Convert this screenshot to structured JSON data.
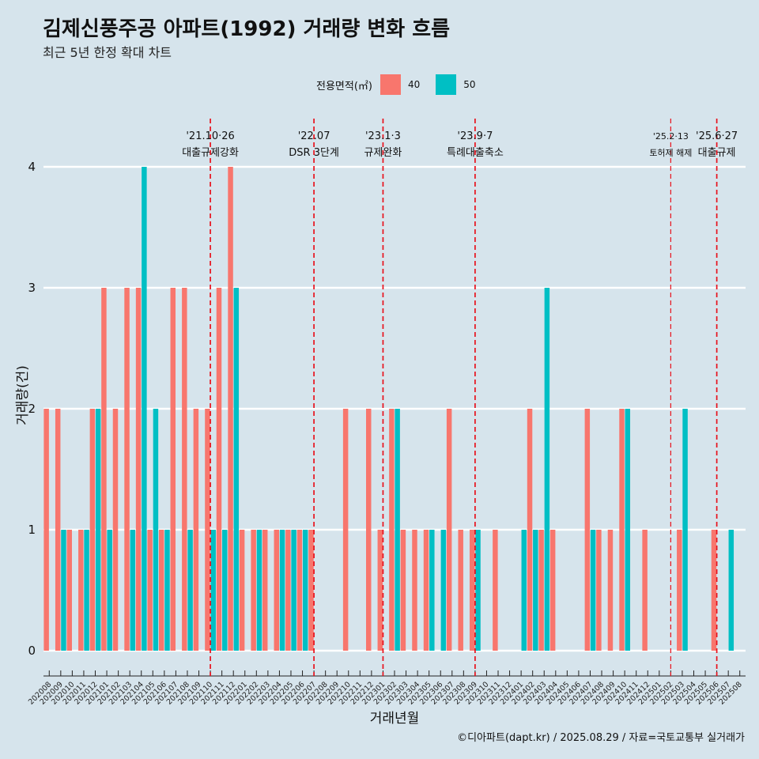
{
  "title": "김제신풍주공 아파트(1992) 거래량 변화 흐름",
  "subtitle": "최근 5년 한정 확대 차트",
  "legend": {
    "title": "전용면적(㎡)",
    "items": [
      {
        "label": "40",
        "color": "#F8766D"
      },
      {
        "label": "50",
        "color": "#00BFC4"
      }
    ]
  },
  "caption": "©디아파트(dapt.kr) / 2025.08.29 / 자료=국토교통부 실거래가",
  "colors": {
    "background": "#d6e4ec",
    "grid": "#ffffff",
    "event_line": "#e8111c"
  },
  "chart_data": {
    "type": "bar",
    "position": "dodge",
    "xlabel": "거래년월",
    "ylabel": "거래량(건)",
    "ylim": [
      0,
      4
    ],
    "yticks": [
      0,
      1,
      2,
      3,
      4
    ],
    "grid": "horizontal",
    "legend_position": "top",
    "categories": [
      "202008",
      "202009",
      "202010",
      "202011",
      "202012",
      "202101",
      "202102",
      "202103",
      "202104",
      "202105",
      "202106",
      "202107",
      "202108",
      "202109",
      "202110",
      "202111",
      "202112",
      "202201",
      "202202",
      "202203",
      "202204",
      "202205",
      "202206",
      "202207",
      "202208",
      "202209",
      "202210",
      "202211",
      "202212",
      "202301",
      "202302",
      "202303",
      "202304",
      "202305",
      "202306",
      "202307",
      "202308",
      "202309",
      "202310",
      "202311",
      "202312",
      "202401",
      "202402",
      "202403",
      "202404",
      "202405",
      "202406",
      "202407",
      "202408",
      "202409",
      "202410",
      "202411",
      "202412",
      "202501",
      "202502",
      "202503",
      "202504",
      "202505",
      "202506",
      "202507",
      "202508"
    ],
    "series": [
      {
        "name": "40",
        "values": [
          2,
          2,
          1,
          1,
          2,
          3,
          2,
          3,
          3,
          1,
          1,
          3,
          3,
          2,
          2,
          3,
          4,
          1,
          1,
          1,
          1,
          1,
          1,
          1,
          0,
          0,
          2,
          0,
          2,
          1,
          2,
          1,
          1,
          1,
          0,
          2,
          1,
          1,
          0,
          1,
          0,
          0,
          2,
          1,
          1,
          0,
          0,
          2,
          1,
          1,
          2,
          0,
          1,
          0,
          0,
          1,
          0,
          0,
          1,
          0,
          0
        ]
      },
      {
        "name": "50",
        "values": [
          0,
          1,
          0,
          1,
          2,
          1,
          0,
          1,
          4,
          2,
          1,
          0,
          1,
          0,
          1,
          1,
          3,
          0,
          1,
          0,
          1,
          1,
          1,
          0,
          0,
          0,
          0,
          0,
          0,
          0,
          2,
          0,
          0,
          1,
          1,
          0,
          0,
          1,
          0,
          0,
          0,
          1,
          1,
          3,
          0,
          0,
          0,
          1,
          0,
          0,
          2,
          0,
          0,
          0,
          0,
          2,
          0,
          0,
          0,
          1,
          0
        ]
      }
    ],
    "events": [
      {
        "month": "202110",
        "date": "'21.10·26",
        "label": "대출규제강화"
      },
      {
        "month": "202207",
        "date": "'22.07",
        "label": "DSR 3단계"
      },
      {
        "month": "202301",
        "date": "'23.1·3",
        "label": "규제완화"
      },
      {
        "month": "202309",
        "date": "'23.9·7",
        "label": "특례대출축소"
      },
      {
        "month": "202502",
        "date": "'25.2·13",
        "label": "토허제 해제"
      },
      {
        "month": "202506",
        "date": "'25.6·27",
        "label": "대출규제"
      }
    ]
  }
}
